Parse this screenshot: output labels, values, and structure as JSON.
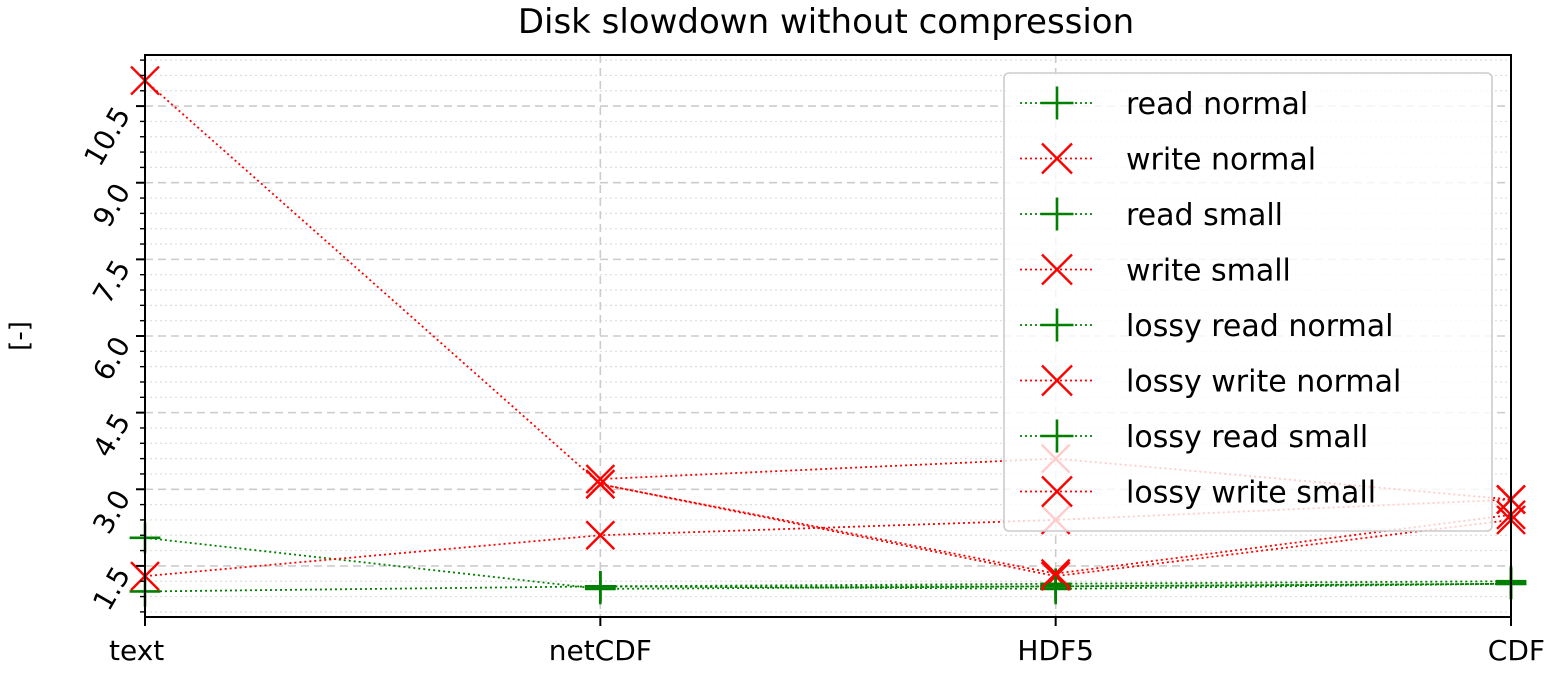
{
  "chart_data": {
    "type": "line",
    "title": "Disk slowdown without compression",
    "xlabel": "",
    "ylabel": "[-]",
    "categories": [
      "text",
      "netCDF",
      "HDF5",
      "CDF"
    ],
    "ylim": [
      0.5,
      11.5
    ],
    "yticks": [
      "1.5",
      "3.0",
      "4.5",
      "6.0",
      "7.5",
      "9.0",
      "10.5"
    ],
    "ytick_values": [
      1.5,
      3.0,
      4.5,
      6.0,
      7.5,
      9.0,
      10.5
    ],
    "grid": true,
    "legend_position": "upper right",
    "series": [
      {
        "name": "read normal",
        "color": "#008000",
        "marker": "plus",
        "values": [
          1.0,
          1.1,
          1.05,
          1.15
        ]
      },
      {
        "name": "write normal",
        "color": "#ff0000",
        "marker": "x",
        "values": [
          11.0,
          3.1,
          1.3,
          2.4
        ]
      },
      {
        "name": "read small",
        "color": "#008000",
        "marker": "plus",
        "values": [
          2.05,
          1.05,
          1.1,
          1.15
        ]
      },
      {
        "name": "write small",
        "color": "#ff0000",
        "marker": "x",
        "values": [
          1.3,
          2.1,
          2.4,
          2.8
        ]
      },
      {
        "name": "lossy read normal",
        "color": "#008000",
        "marker": "plus",
        "values": [
          null,
          1.1,
          1.15,
          1.2
        ]
      },
      {
        "name": "lossy write normal",
        "color": "#ff0000",
        "marker": "x",
        "values": [
          null,
          3.2,
          3.6,
          2.8
        ]
      },
      {
        "name": "lossy read small",
        "color": "#008000",
        "marker": "plus",
        "values": [
          null,
          1.1,
          1.1,
          1.15
        ]
      },
      {
        "name": "lossy write small",
        "color": "#ff0000",
        "marker": "x",
        "values": [
          null,
          3.1,
          1.35,
          2.5
        ]
      }
    ]
  }
}
